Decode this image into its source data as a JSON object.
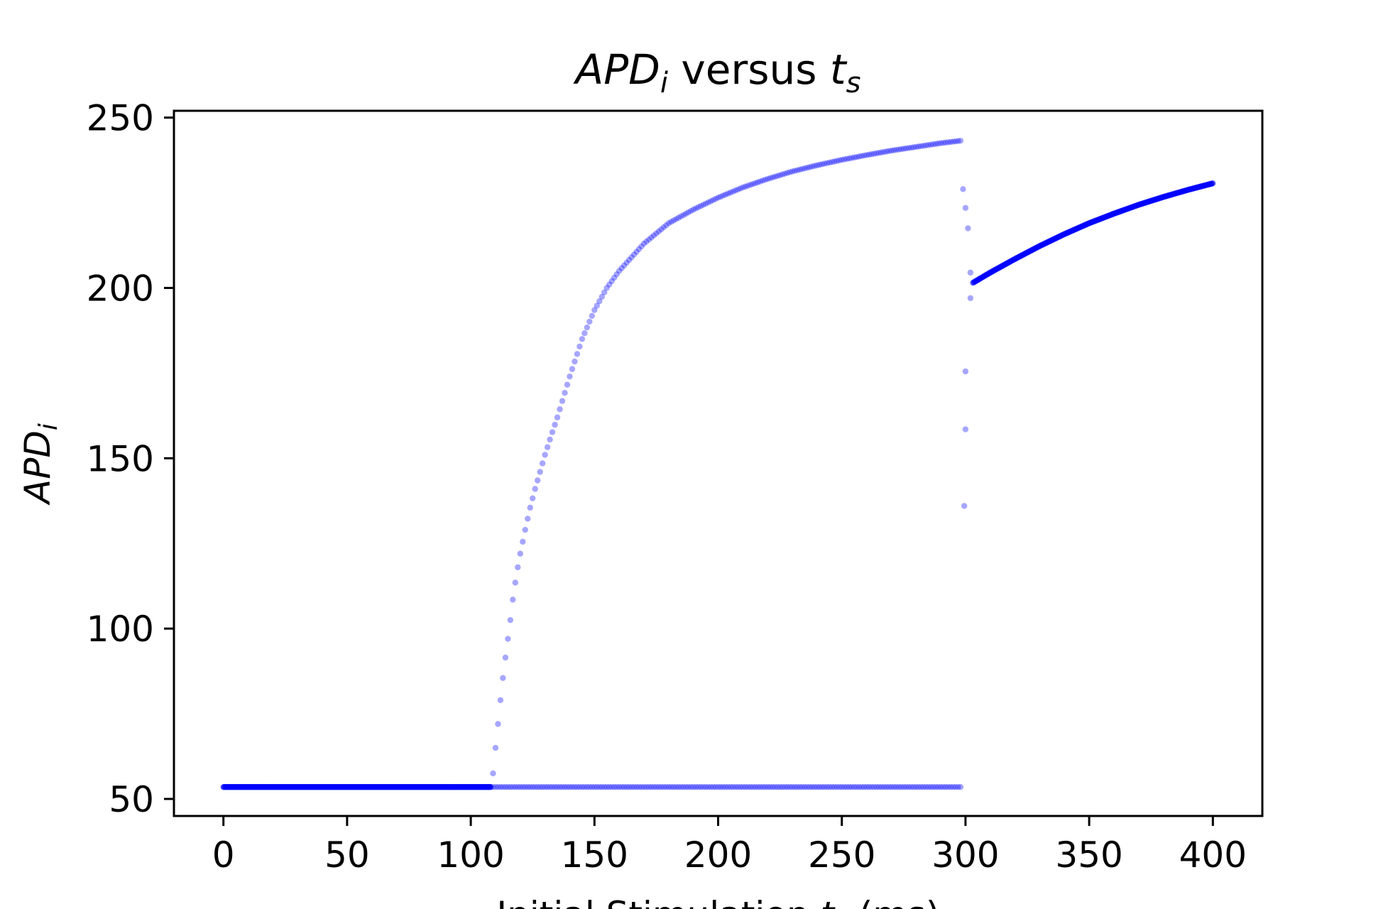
{
  "chart_data": {
    "type": "scatter",
    "title": {
      "main": "APD",
      "main_sub": "i",
      "rest": " versus ",
      "var": "t",
      "var_sub": "s"
    },
    "xlabel": {
      "pre": "Initial Stimulation ",
      "var": "t",
      "var_sub": "s",
      "post": " (ms)"
    },
    "ylabel": {
      "main": "APD",
      "sub": "i"
    },
    "xlim": [
      -20,
      420
    ],
    "ylim": [
      45,
      252
    ],
    "xticks": [
      0,
      50,
      100,
      150,
      200,
      250,
      300,
      350,
      400
    ],
    "yticks": [
      50,
      100,
      150,
      200,
      250
    ],
    "grid": false,
    "marker_color": "#0000ff",
    "segments": [
      {
        "x_start": 0,
        "x_end": 108,
        "step": 0.25,
        "y": 53.5,
        "alpha": 0.5
      },
      {
        "x_start": 108,
        "x_end": 298,
        "step": 1,
        "y": 53.5,
        "alpha": 0.35
      },
      {
        "x_start": 109,
        "x_end": 298,
        "step": 1,
        "curve": "rise",
        "alpha": 0.35
      },
      {
        "x_start": 303,
        "x_end": 400,
        "step": 0.25,
        "curve": "late",
        "alpha": 0.45
      }
    ],
    "transition_points": [
      {
        "x": 299,
        "y": 229
      },
      {
        "x": 300,
        "y": 223.5
      },
      {
        "x": 301,
        "y": 217.5
      },
      {
        "x": 302,
        "y": 204.5
      },
      {
        "x": 302,
        "y": 197
      },
      {
        "x": 300,
        "y": 175.5
      },
      {
        "x": 300,
        "y": 158.5
      },
      {
        "x": 299.5,
        "y": 136
      }
    ],
    "curve_params": {
      "rise_anchor_x": [
        109,
        110,
        111,
        112,
        113,
        114,
        115,
        116,
        117,
        118,
        119,
        120,
        122,
        124,
        126,
        128,
        130,
        132,
        135,
        140,
        145,
        150,
        155,
        160,
        170,
        180,
        190,
        200,
        210,
        220,
        230,
        240,
        250,
        260,
        270,
        280,
        290,
        298
      ],
      "rise_anchor_y": [
        57.5,
        65,
        72,
        79,
        85.5,
        91.5,
        97,
        102.5,
        108.5,
        113.5,
        118,
        122,
        129,
        135.5,
        141,
        146,
        151,
        155.5,
        162,
        174,
        185,
        193.5,
        200,
        205,
        213,
        219,
        223,
        226.5,
        229.5,
        232,
        234.2,
        236,
        237.6,
        239,
        240.3,
        241.4,
        242.5,
        243.2
      ],
      "late_anchor_x": [
        303,
        310,
        320,
        330,
        340,
        350,
        360,
        370,
        380,
        390,
        400
      ],
      "late_anchor_y": [
        201.5,
        204.5,
        208.5,
        212.3,
        215.8,
        219,
        221.8,
        224.4,
        226.7,
        228.8,
        230.7
      ]
    }
  }
}
